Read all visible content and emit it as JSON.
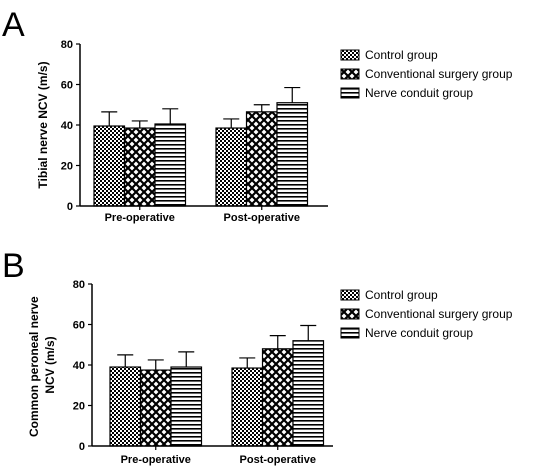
{
  "chart_data": [
    {
      "type": "bar",
      "panel": "A",
      "title": "",
      "xlabel": "",
      "ylabel": "Tibial nerve NCV (m/s)",
      "ylim": [
        0,
        80
      ],
      "yticks": [
        "0",
        "20",
        "40",
        "60",
        "80"
      ],
      "categories": [
        "Pre-operative",
        "Post-operative"
      ],
      "series": [
        {
          "name": "Control group",
          "values": [
            39.5,
            38.5
          ],
          "errors": [
            7,
            4.5
          ]
        },
        {
          "name": "Conventional surgery group",
          "values": [
            38.5,
            46.5
          ],
          "errors": [
            3.5,
            3.5
          ]
        },
        {
          "name": "Nerve conduit group",
          "values": [
            40.5,
            51
          ],
          "errors": [
            7.5,
            7.5
          ]
        }
      ]
    },
    {
      "type": "bar",
      "panel": "B",
      "title": "",
      "xlabel": "",
      "ylabel": "Common peroneal nerve NCV (m/s)",
      "ylabel_lines": [
        "Common peroneal nerve",
        "NCV (m/s)"
      ],
      "ylim": [
        0,
        80
      ],
      "yticks": [
        "0",
        "20",
        "40",
        "60",
        "80"
      ],
      "categories": [
        "Pre-operative",
        "Post-operative"
      ],
      "series": [
        {
          "name": "Control group",
          "values": [
            39,
            38.5
          ],
          "errors": [
            6,
            5
          ]
        },
        {
          "name": "Conventional surgery group",
          "values": [
            37.5,
            48
          ],
          "errors": [
            5,
            6.5
          ]
        },
        {
          "name": "Nerve conduit group",
          "values": [
            39,
            52
          ],
          "errors": [
            7.5,
            7.5
          ]
        }
      ]
    }
  ],
  "legend": {
    "items": [
      "Control group",
      "Conventional surgery group",
      "Nerve conduit group"
    ],
    "placement": "right"
  }
}
